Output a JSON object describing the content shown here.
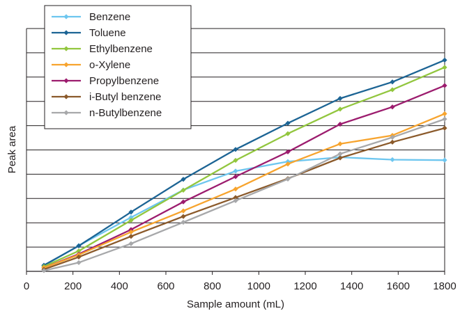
{
  "chart_data": {
    "type": "line",
    "xlabel": "Sample amount (mL)",
    "ylabel": "Peak area",
    "xlim": [
      0,
      1800
    ],
    "x_ticks": [
      "0",
      "200",
      "400",
      "600",
      "800",
      "1000",
      "1200",
      "1400",
      "1600",
      "1800"
    ],
    "y_tick_labels_shown": false,
    "ylim": [
      0,
      10
    ],
    "grid": "horizontal",
    "legend_position": "top-left",
    "x": [
      75,
      225,
      450,
      675,
      900,
      1125,
      1350,
      1575,
      1800
    ],
    "series": [
      {
        "name": "Benzene",
        "color": "#6dc6ef",
        "values": [
          0.23,
          1.06,
          2.22,
          3.35,
          4.13,
          4.52,
          4.7,
          4.6,
          4.58
        ]
      },
      {
        "name": "Toluene",
        "color": "#1c6494",
        "values": [
          0.25,
          1.05,
          2.44,
          3.79,
          5.02,
          6.1,
          7.12,
          7.8,
          8.7
        ]
      },
      {
        "name": "Ethylbenzene",
        "color": "#92c63e",
        "values": [
          0.2,
          0.84,
          2.1,
          3.34,
          4.57,
          5.67,
          6.68,
          7.48,
          8.4
        ]
      },
      {
        "name": "o-Xylene",
        "color": "#f7a42e",
        "values": [
          0.15,
          0.68,
          1.62,
          2.49,
          3.39,
          4.42,
          5.25,
          5.6,
          6.49
        ]
      },
      {
        "name": "Propylbenzene",
        "color": "#9c1c6e",
        "values": [
          0.15,
          0.71,
          1.72,
          2.86,
          3.9,
          4.92,
          6.06,
          6.77,
          7.65
        ]
      },
      {
        "name": "i-Butyl benzene",
        "color": "#8b5a2b",
        "values": [
          0.08,
          0.59,
          1.44,
          2.26,
          3.04,
          3.82,
          4.67,
          5.32,
          5.9
        ]
      },
      {
        "name": "n-Butylbenzene",
        "color": "#a7a8aa",
        "values": [
          0.03,
          0.36,
          1.14,
          2.02,
          2.91,
          3.8,
          4.84,
          5.52,
          6.27
        ]
      }
    ]
  }
}
